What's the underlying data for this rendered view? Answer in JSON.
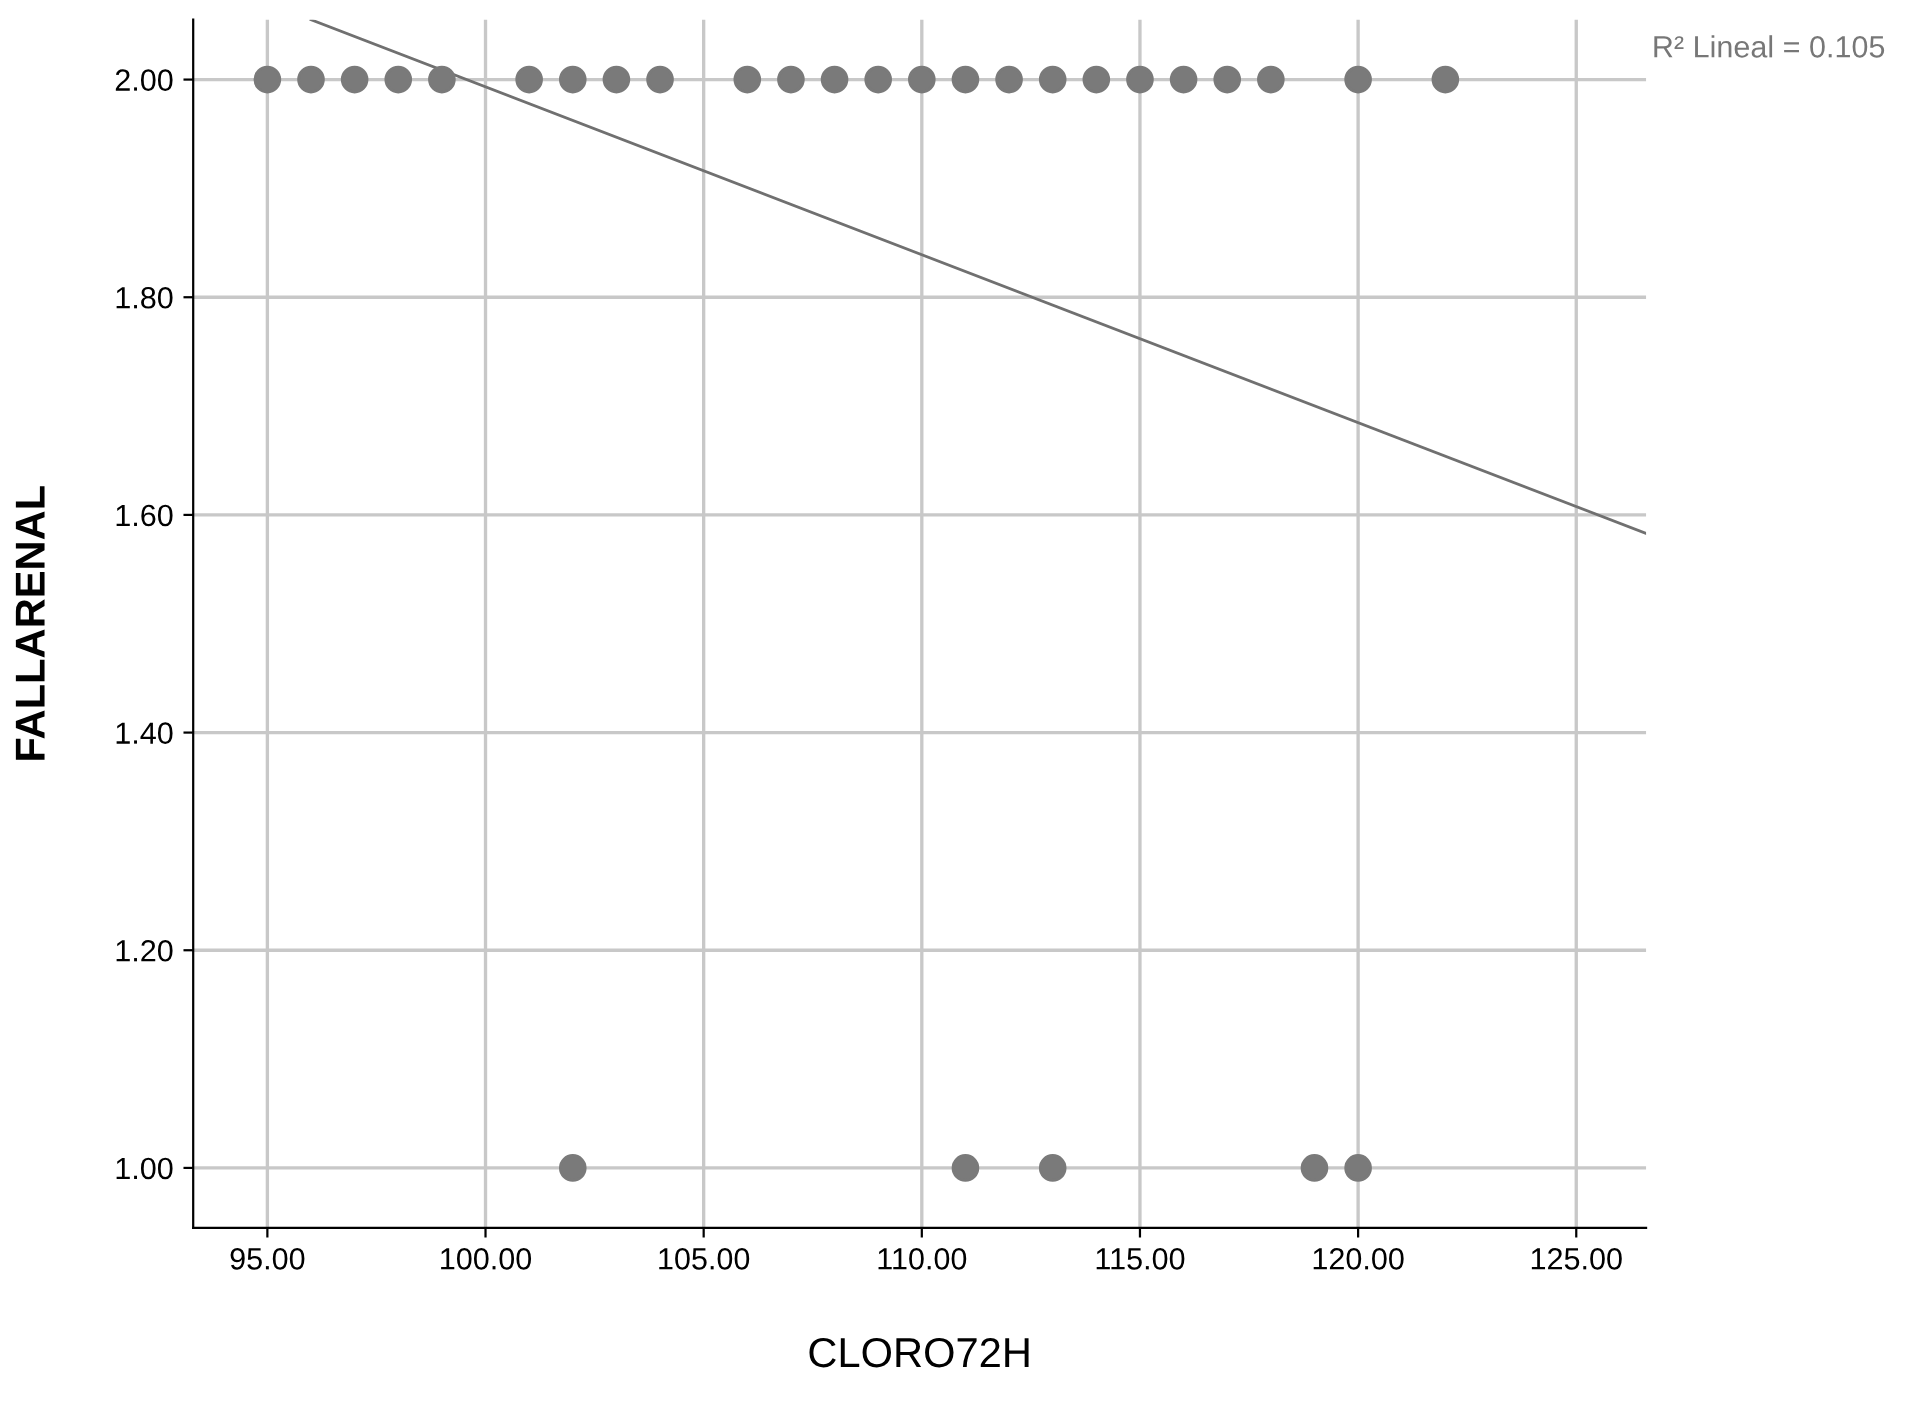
{
  "chart_data": {
    "type": "scatter",
    "xlabel": "CLORO72H",
    "ylabel": "FALLARENAL",
    "xlim": [
      93.3,
      126.6
    ],
    "ylim": [
      0.945,
      2.055
    ],
    "xticks": [
      {
        "value": 95,
        "label": "95.00"
      },
      {
        "value": 100,
        "label": "100.00"
      },
      {
        "value": 105,
        "label": "105.00"
      },
      {
        "value": 110,
        "label": "110.00"
      },
      {
        "value": 115,
        "label": "115.00"
      },
      {
        "value": 120,
        "label": "120.00"
      },
      {
        "value": 125,
        "label": "125.00"
      }
    ],
    "yticks": [
      {
        "value": 1.0,
        "label": "1.00"
      },
      {
        "value": 1.2,
        "label": "1.20"
      },
      {
        "value": 1.4,
        "label": "1.40"
      },
      {
        "value": 1.6,
        "label": "1.60"
      },
      {
        "value": 1.8,
        "label": "1.80"
      },
      {
        "value": 2.0,
        "label": "2.00"
      }
    ],
    "grid": true,
    "series": [
      {
        "marker": "circle",
        "color": "#7a7a7a",
        "x": [
          95,
          96,
          97,
          98,
          99,
          101,
          102,
          103,
          104,
          106,
          107,
          108,
          109,
          110,
          111,
          112,
          113,
          114,
          115,
          116,
          117,
          118,
          120,
          122,
          102,
          111,
          113,
          119,
          120
        ],
        "values": [
          2,
          2,
          2,
          2,
          2,
          2,
          2,
          2,
          2,
          2,
          2,
          2,
          2,
          2,
          2,
          2,
          2,
          2,
          2,
          2,
          2,
          2,
          2,
          2,
          1,
          1,
          1,
          1,
          1
        ]
      },
      {
        "type": "line",
        "marker": "none",
        "color": "#707070",
        "x": [
          96,
          126.6
        ],
        "values": [
          2.055,
          1.583
        ]
      }
    ],
    "annotations": [
      "R² Lineal = 0.105"
    ]
  }
}
